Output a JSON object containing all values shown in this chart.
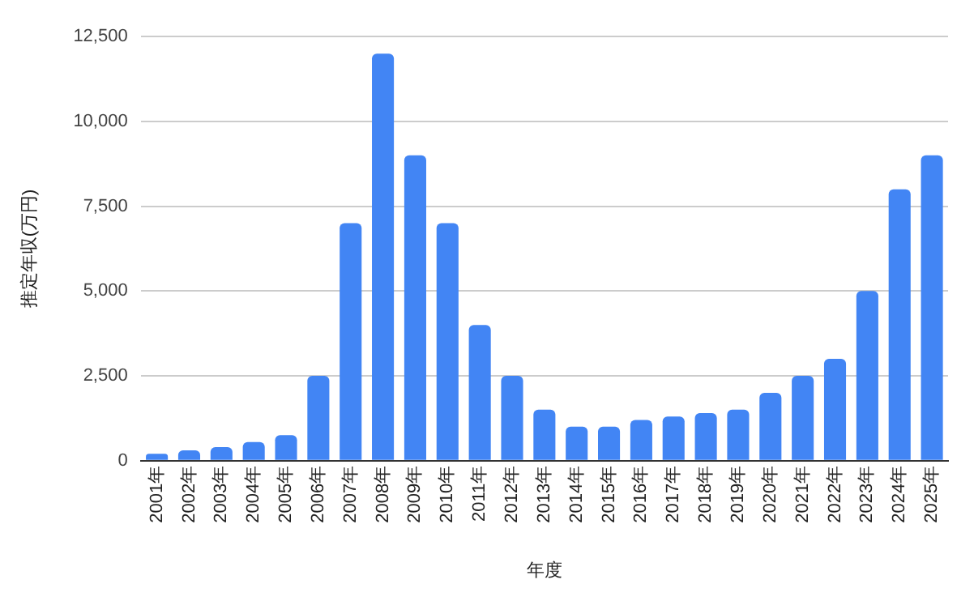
{
  "chart_data": {
    "type": "bar",
    "xlabel": "年度",
    "ylabel": "推定年収(万円)",
    "categories": [
      "2001年",
      "2002年",
      "2003年",
      "2004年",
      "2005年",
      "2006年",
      "2007年",
      "2008年",
      "2009年",
      "2010年",
      "2011年",
      "2012年",
      "2013年",
      "2014年",
      "2015年",
      "2016年",
      "2017年",
      "2018年",
      "2019年",
      "2020年",
      "2021年",
      "2022年",
      "2023年",
      "2024年",
      "2025年"
    ],
    "values": [
      200,
      300,
      400,
      550,
      750,
      2500,
      7000,
      12000,
      9000,
      7000,
      4000,
      2500,
      1500,
      1000,
      1000,
      1200,
      1300,
      1400,
      1500,
      2000,
      2500,
      3000,
      5000,
      8000,
      9000
    ],
    "color": "#4285f4",
    "ylim": [
      0,
      12500
    ],
    "yticks": [
      {
        "value": 0,
        "label": "0"
      },
      {
        "value": 2500,
        "label": "2,500"
      },
      {
        "value": 5000,
        "label": "5,000"
      },
      {
        "value": 7500,
        "label": "7,500"
      },
      {
        "value": 10000,
        "label": "10,000"
      },
      {
        "value": 12500,
        "label": "12,500"
      }
    ],
    "grid": "y",
    "legend": false
  }
}
